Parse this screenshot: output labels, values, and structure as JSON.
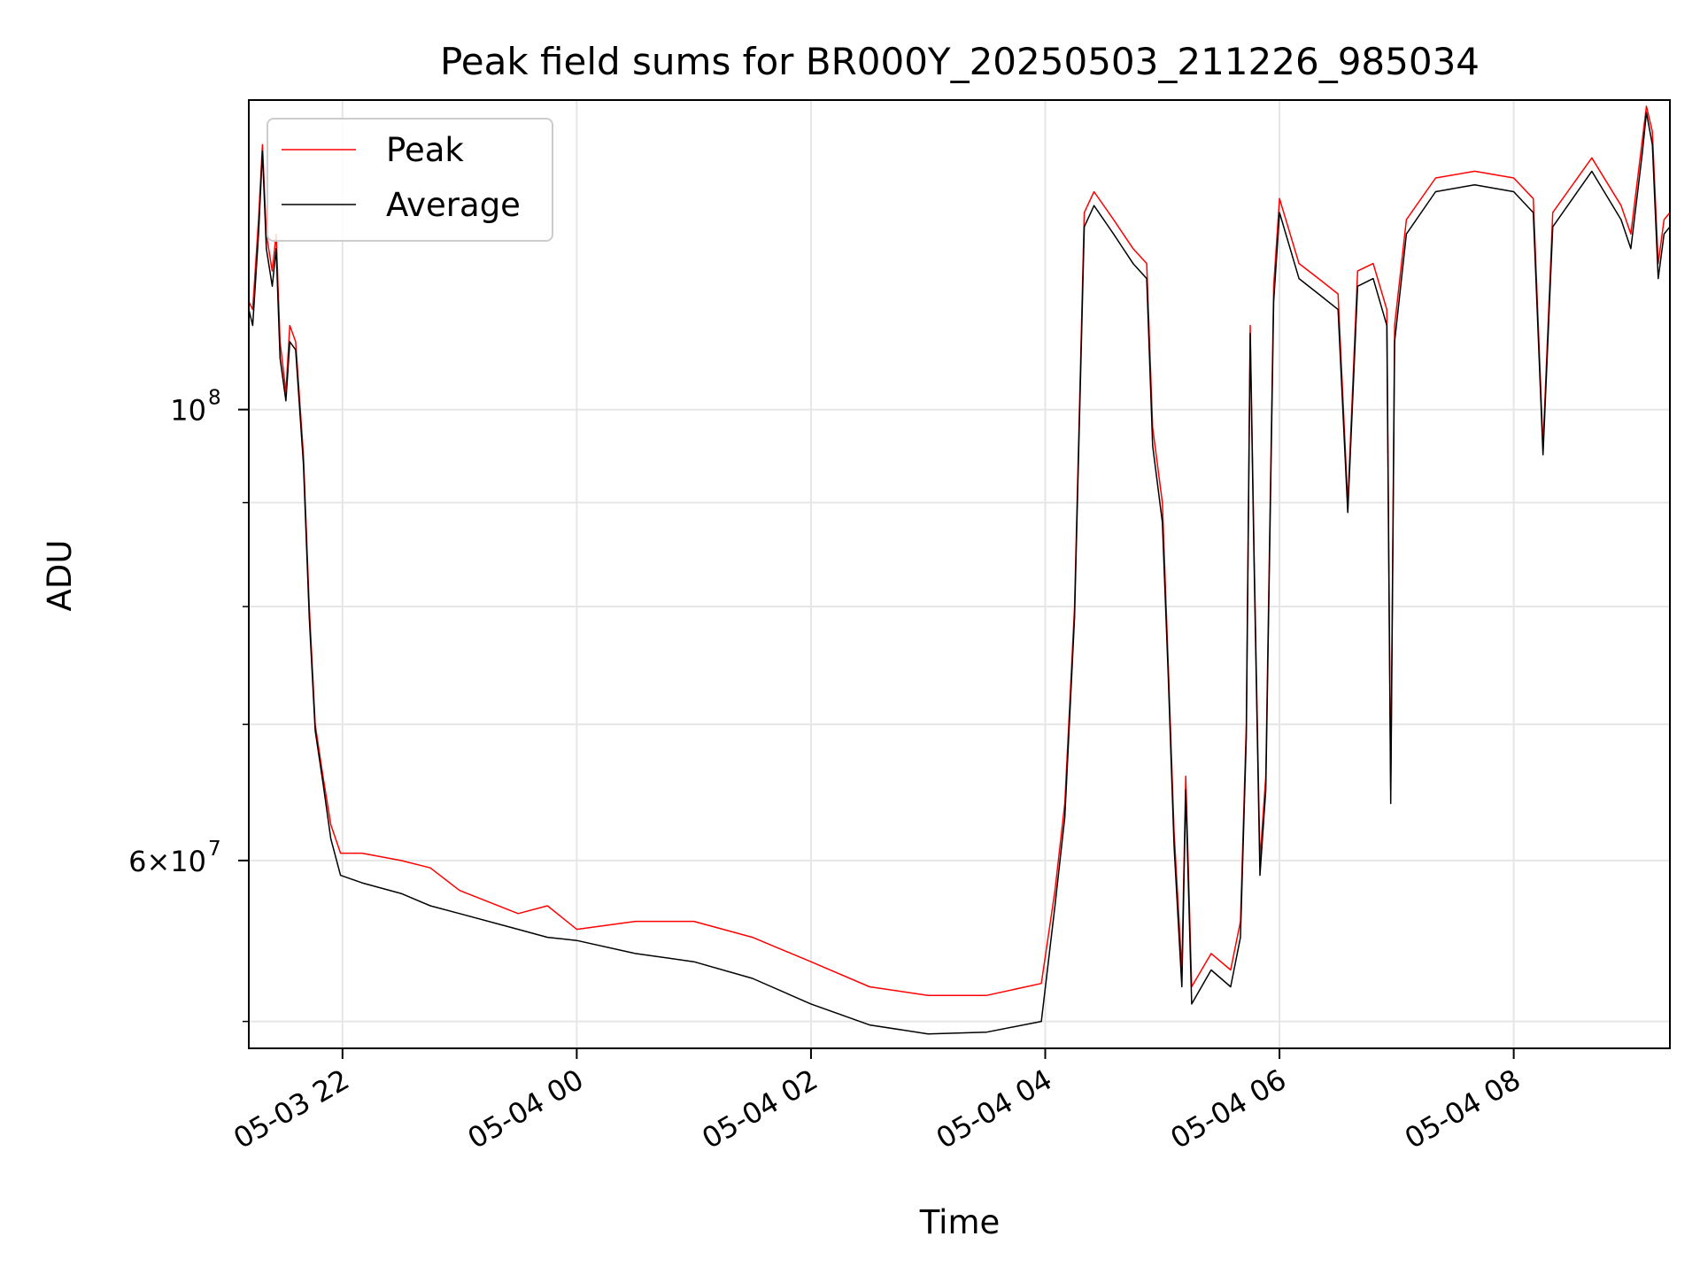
{
  "chart_data": {
    "type": "line",
    "title": "Peak field sums for BR000Y_20250503_211226_985034",
    "xlabel": "Time",
    "ylabel": "ADU",
    "yscale": "log",
    "xlim": [
      "2025-05-03 21:12",
      "2025-05-04 09:20"
    ],
    "ylim": [
      48500000,
      142000000
    ],
    "x_ticks": [
      {
        "t": "2025-05-03 22:00",
        "label": "05-03 22"
      },
      {
        "t": "2025-05-04 00:00",
        "label": "05-04 00"
      },
      {
        "t": "2025-05-04 02:00",
        "label": "05-04 02"
      },
      {
        "t": "2025-05-04 04:00",
        "label": "05-04 04"
      },
      {
        "t": "2025-05-04 06:00",
        "label": "05-04 06"
      },
      {
        "t": "2025-05-04 08:00",
        "label": "05-04 08"
      }
    ],
    "y_major_ticks": [
      {
        "value": 100000000,
        "label_base": "10",
        "label_exp": "8"
      },
      {
        "value": 60000000,
        "label_base": "6×10",
        "label_exp": "7"
      }
    ],
    "y_minor_ticks": [
      50000000,
      70000000,
      80000000,
      90000000
    ],
    "grid": true,
    "legend_position": "top-left",
    "series": [
      {
        "name": "Peak",
        "color": "#ff0000",
        "points": [
          [
            "2025-05-03 21:12",
            113000000
          ],
          [
            "2025-05-03 21:14",
            112000000
          ],
          [
            "2025-05-03 21:17",
            124000000
          ],
          [
            "2025-05-03 21:19",
            135000000
          ],
          [
            "2025-05-03 21:21",
            122000000
          ],
          [
            "2025-05-03 21:24",
            117000000
          ],
          [
            "2025-05-03 21:26",
            122000000
          ],
          [
            "2025-05-03 21:28",
            108000000
          ],
          [
            "2025-05-03 21:31",
            102000000
          ],
          [
            "2025-05-03 21:33",
            110000000
          ],
          [
            "2025-05-03 21:36",
            108000000
          ],
          [
            "2025-05-03 21:40",
            95000000
          ],
          [
            "2025-05-03 21:43",
            80000000
          ],
          [
            "2025-05-03 21:46",
            70000000
          ],
          [
            "2025-05-03 21:50",
            66000000
          ],
          [
            "2025-05-03 21:54",
            62500000
          ],
          [
            "2025-05-03 21:59",
            60500000
          ],
          [
            "2025-05-03 22:10",
            60500000
          ],
          [
            "2025-05-03 22:30",
            60000000
          ],
          [
            "2025-05-03 22:45",
            59500000
          ],
          [
            "2025-05-03 23:00",
            58000000
          ],
          [
            "2025-05-03 23:30",
            56500000
          ],
          [
            "2025-05-03 23:45",
            57000000
          ],
          [
            "2025-05-04 00:00",
            55500000
          ],
          [
            "2025-05-04 00:30",
            56000000
          ],
          [
            "2025-05-04 01:00",
            56000000
          ],
          [
            "2025-05-04 01:30",
            55000000
          ],
          [
            "2025-05-04 02:00",
            53500000
          ],
          [
            "2025-05-04 02:30",
            52000000
          ],
          [
            "2025-05-04 03:00",
            51500000
          ],
          [
            "2025-05-04 03:30",
            51500000
          ],
          [
            "2025-05-04 03:58",
            52200000
          ],
          [
            "2025-05-04 04:05",
            58000000
          ],
          [
            "2025-05-04 04:10",
            64000000
          ],
          [
            "2025-05-04 04:15",
            80000000
          ],
          [
            "2025-05-04 04:20",
            125000000
          ],
          [
            "2025-05-04 04:25",
            128000000
          ],
          [
            "2025-05-04 04:35",
            124000000
          ],
          [
            "2025-05-04 04:45",
            120000000
          ],
          [
            "2025-05-04 04:52",
            118000000
          ],
          [
            "2025-05-04 04:55",
            98000000
          ],
          [
            "2025-05-04 05:00",
            90000000
          ],
          [
            "2025-05-04 05:03",
            75000000
          ],
          [
            "2025-05-04 05:06",
            62000000
          ],
          [
            "2025-05-04 05:10",
            53000000
          ],
          [
            "2025-05-04 05:12",
            66000000
          ],
          [
            "2025-05-04 05:15",
            52000000
          ],
          [
            "2025-05-04 05:25",
            54000000
          ],
          [
            "2025-05-04 05:35",
            53000000
          ],
          [
            "2025-05-04 05:40",
            56000000
          ],
          [
            "2025-05-04 05:43",
            70000000
          ],
          [
            "2025-05-04 05:45",
            110000000
          ],
          [
            "2025-05-04 05:47",
            85000000
          ],
          [
            "2025-05-04 05:50",
            60000000
          ],
          [
            "2025-05-04 05:53",
            66000000
          ],
          [
            "2025-05-04 05:57",
            115000000
          ],
          [
            "2025-05-04 06:00",
            127000000
          ],
          [
            "2025-05-04 06:10",
            118000000
          ],
          [
            "2025-05-04 06:20",
            116000000
          ],
          [
            "2025-05-04 06:30",
            114000000
          ],
          [
            "2025-05-04 06:35",
            90000000
          ],
          [
            "2025-05-04 06:40",
            117000000
          ],
          [
            "2025-05-04 06:48",
            118000000
          ],
          [
            "2025-05-04 06:55",
            112000000
          ],
          [
            "2025-05-04 06:57",
            65000000
          ],
          [
            "2025-05-04 06:59",
            110000000
          ],
          [
            "2025-05-04 07:05",
            124000000
          ],
          [
            "2025-05-04 07:20",
            130000000
          ],
          [
            "2025-05-04 07:40",
            131000000
          ],
          [
            "2025-05-04 08:00",
            130000000
          ],
          [
            "2025-05-04 08:10",
            127000000
          ],
          [
            "2025-05-04 08:15",
            96000000
          ],
          [
            "2025-05-04 08:20",
            125000000
          ],
          [
            "2025-05-04 08:40",
            133000000
          ],
          [
            "2025-05-04 08:55",
            126000000
          ],
          [
            "2025-05-04 09:00",
            122000000
          ],
          [
            "2025-05-04 09:06",
            136000000
          ],
          [
            "2025-05-04 09:08",
            141000000
          ],
          [
            "2025-05-04 09:11",
            137000000
          ],
          [
            "2025-05-04 09:14",
            118000000
          ],
          [
            "2025-05-04 09:17",
            124000000
          ],
          [
            "2025-05-04 09:20",
            125000000
          ]
        ]
      },
      {
        "name": "Average",
        "color": "#000000",
        "points": [
          [
            "2025-05-03 21:12",
            112000000
          ],
          [
            "2025-05-03 21:14",
            110000000
          ],
          [
            "2025-05-03 21:17",
            122000000
          ],
          [
            "2025-05-03 21:19",
            134000000
          ],
          [
            "2025-05-03 21:21",
            120000000
          ],
          [
            "2025-05-03 21:24",
            115000000
          ],
          [
            "2025-05-03 21:26",
            120000000
          ],
          [
            "2025-05-03 21:28",
            106000000
          ],
          [
            "2025-05-03 21:31",
            101000000
          ],
          [
            "2025-05-03 21:33",
            108000000
          ],
          [
            "2025-05-03 21:36",
            107000000
          ],
          [
            "2025-05-03 21:40",
            94000000
          ],
          [
            "2025-05-03 21:43",
            79000000
          ],
          [
            "2025-05-03 21:46",
            69500000
          ],
          [
            "2025-05-03 21:50",
            65500000
          ],
          [
            "2025-05-03 21:54",
            61500000
          ],
          [
            "2025-05-03 21:59",
            59000000
          ],
          [
            "2025-05-03 22:10",
            58500000
          ],
          [
            "2025-05-03 22:30",
            57800000
          ],
          [
            "2025-05-03 22:45",
            57000000
          ],
          [
            "2025-05-03 23:00",
            56500000
          ],
          [
            "2025-05-03 23:30",
            55500000
          ],
          [
            "2025-05-03 23:45",
            55000000
          ],
          [
            "2025-05-04 00:00",
            54800000
          ],
          [
            "2025-05-04 00:30",
            54000000
          ],
          [
            "2025-05-04 01:00",
            53500000
          ],
          [
            "2025-05-04 01:30",
            52500000
          ],
          [
            "2025-05-04 02:00",
            51000000
          ],
          [
            "2025-05-04 02:30",
            49800000
          ],
          [
            "2025-05-04 03:00",
            49300000
          ],
          [
            "2025-05-04 03:30",
            49400000
          ],
          [
            "2025-05-04 03:58",
            50000000
          ],
          [
            "2025-05-04 04:05",
            57000000
          ],
          [
            "2025-05-04 04:10",
            63000000
          ],
          [
            "2025-05-04 04:15",
            79000000
          ],
          [
            "2025-05-04 04:20",
            123000000
          ],
          [
            "2025-05-04 04:25",
            126000000
          ],
          [
            "2025-05-04 04:35",
            122000000
          ],
          [
            "2025-05-04 04:45",
            118000000
          ],
          [
            "2025-05-04 04:52",
            116000000
          ],
          [
            "2025-05-04 04:55",
            96000000
          ],
          [
            "2025-05-04 05:00",
            88000000
          ],
          [
            "2025-05-04 05:03",
            74000000
          ],
          [
            "2025-05-04 05:06",
            61000000
          ],
          [
            "2025-05-04 05:10",
            52000000
          ],
          [
            "2025-05-04 05:12",
            65000000
          ],
          [
            "2025-05-04 05:15",
            51000000
          ],
          [
            "2025-05-04 05:25",
            53000000
          ],
          [
            "2025-05-04 05:35",
            52000000
          ],
          [
            "2025-05-04 05:40",
            55000000
          ],
          [
            "2025-05-04 05:43",
            69000000
          ],
          [
            "2025-05-04 05:45",
            109000000
          ],
          [
            "2025-05-04 05:47",
            84000000
          ],
          [
            "2025-05-04 05:50",
            59000000
          ],
          [
            "2025-05-04 05:53",
            65000000
          ],
          [
            "2025-05-04 05:57",
            113000000
          ],
          [
            "2025-05-04 06:00",
            125000000
          ],
          [
            "2025-05-04 06:10",
            116000000
          ],
          [
            "2025-05-04 06:20",
            114000000
          ],
          [
            "2025-05-04 06:30",
            112000000
          ],
          [
            "2025-05-04 06:35",
            89000000
          ],
          [
            "2025-05-04 06:40",
            115000000
          ],
          [
            "2025-05-04 06:48",
            116000000
          ],
          [
            "2025-05-04 06:55",
            110000000
          ],
          [
            "2025-05-04 06:57",
            64000000
          ],
          [
            "2025-05-04 06:59",
            108000000
          ],
          [
            "2025-05-04 07:05",
            122000000
          ],
          [
            "2025-05-04 07:20",
            128000000
          ],
          [
            "2025-05-04 07:40",
            129000000
          ],
          [
            "2025-05-04 08:00",
            128000000
          ],
          [
            "2025-05-04 08:10",
            125000000
          ],
          [
            "2025-05-04 08:15",
            95000000
          ],
          [
            "2025-05-04 08:20",
            123000000
          ],
          [
            "2025-05-04 08:40",
            131000000
          ],
          [
            "2025-05-04 08:55",
            124000000
          ],
          [
            "2025-05-04 09:00",
            120000000
          ],
          [
            "2025-05-04 09:06",
            134000000
          ],
          [
            "2025-05-04 09:08",
            140000000
          ],
          [
            "2025-05-04 09:11",
            135000000
          ],
          [
            "2025-05-04 09:14",
            116000000
          ],
          [
            "2025-05-04 09:17",
            122000000
          ],
          [
            "2025-05-04 09:20",
            123000000
          ]
        ]
      }
    ]
  }
}
